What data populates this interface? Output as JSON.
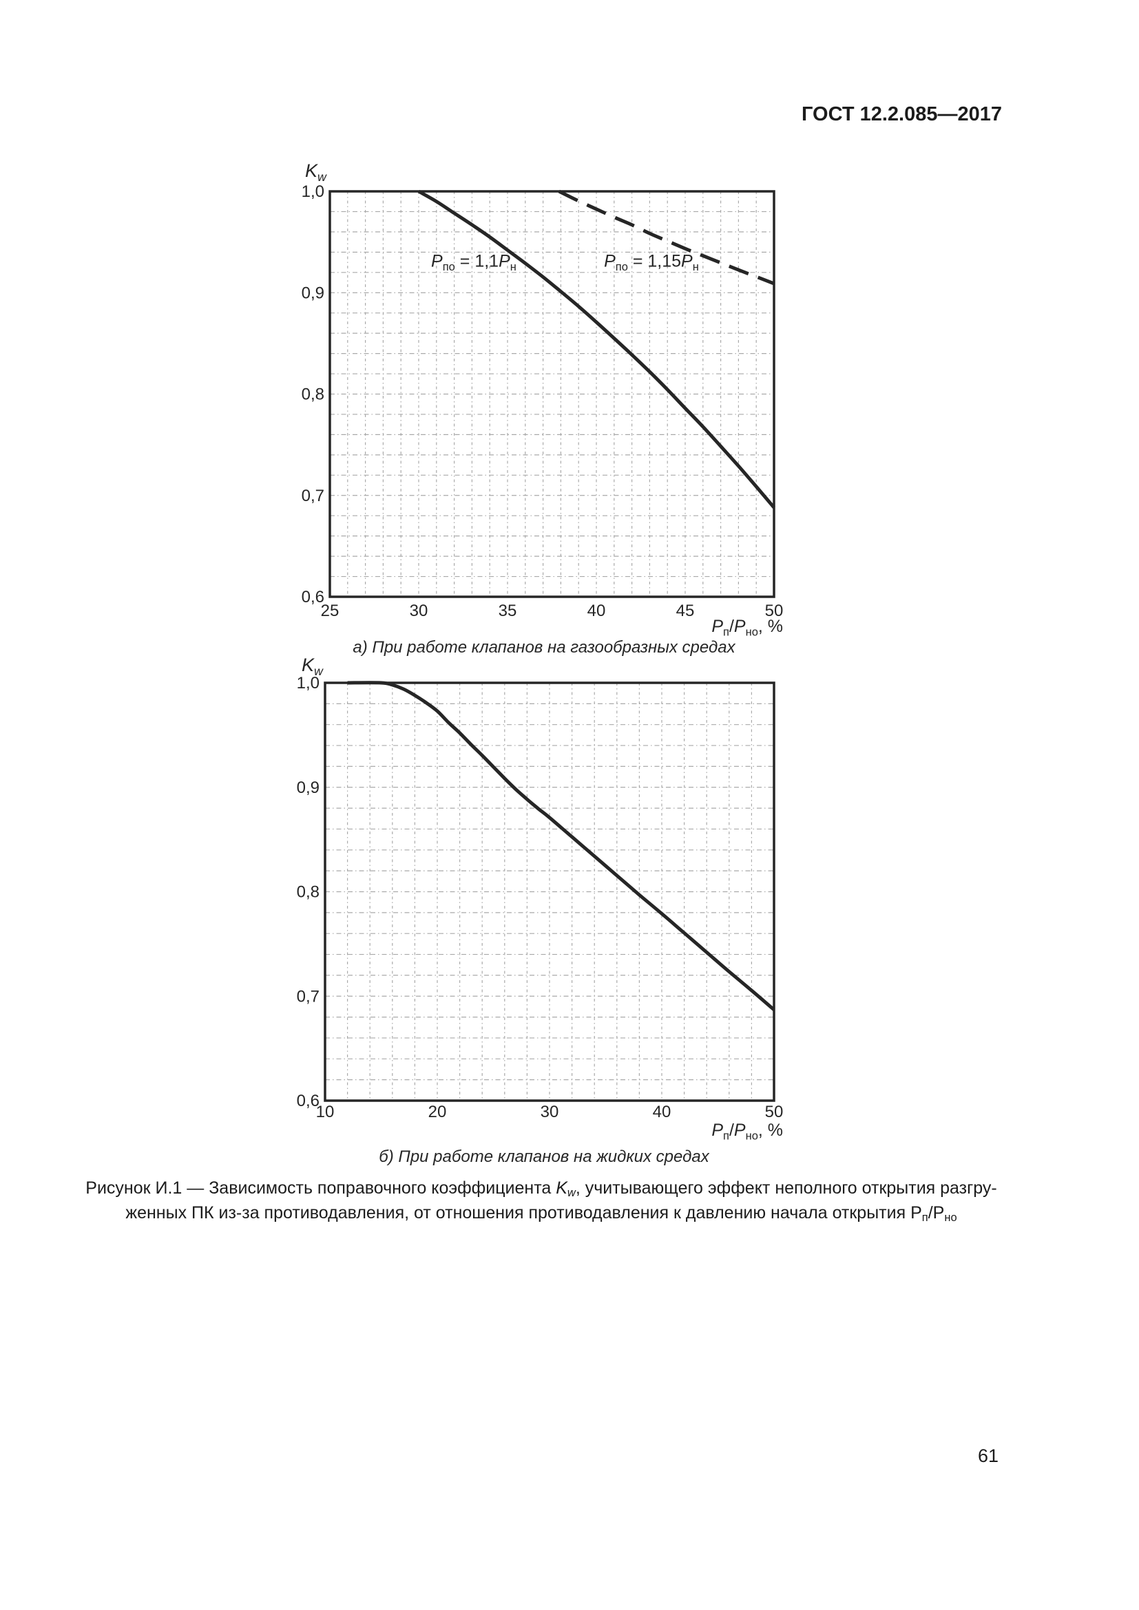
{
  "page": {
    "header": "ГОСТ 12.2.085—2017",
    "page_number": "61"
  },
  "figure_caption": {
    "line1": [
      {
        "t": "Рисунок И.1 — Зависимость поправочного коэффициента "
      },
      {
        "t": "K",
        "i": true
      },
      {
        "t": "w",
        "i": true,
        "sub": true
      },
      {
        "t": ", учитывающего эффект неполного открытия разгру-"
      }
    ],
    "line2": [
      {
        "t": "женных ПК из-за противодавления, от отношения противодавления к давлению начала открытия Р"
      },
      {
        "t": "п",
        "sub": true
      },
      {
        "t": "/Р"
      },
      {
        "t": "но",
        "sub": true
      }
    ]
  },
  "chart_data": [
    {
      "type": "line",
      "title": "а) При работе клапанов на газообразных средах",
      "ylabel": [
        {
          "t": "K",
          "i": true
        },
        {
          "t": "w",
          "i": true,
          "sub": true
        }
      ],
      "xlabel": [
        {
          "t": "P",
          "i": true
        },
        {
          "t": "п",
          "sub": true
        },
        {
          "t": "/"
        },
        {
          "t": "P",
          "i": true
        },
        {
          "t": "но",
          "sub": true
        },
        {
          "t": ", %"
        }
      ],
      "xlim": [
        25,
        50
      ],
      "ylim": [
        0.6,
        1.0
      ],
      "x_major": 5,
      "y_major": 0.1,
      "x_minor": 1,
      "y_minor": 0.02,
      "grid": true,
      "x_ticks": [
        {
          "v": 25,
          "label": "25"
        },
        {
          "v": 30,
          "label": "30"
        },
        {
          "v": 35,
          "label": "35"
        },
        {
          "v": 40,
          "label": "40"
        },
        {
          "v": 45,
          "label": "45"
        },
        {
          "v": 50,
          "label": "50"
        }
      ],
      "y_ticks": [
        {
          "v": 1.0,
          "label": "1,0"
        },
        {
          "v": 0.9,
          "label": "0,9"
        },
        {
          "v": 0.8,
          "label": "0,8"
        },
        {
          "v": 0.7,
          "label": "0,7"
        },
        {
          "v": 0.6,
          "label": "0,6"
        }
      ],
      "series": [
        {
          "name": "Pпо = 1,1Pн",
          "dashed": false,
          "label": [
            {
              "t": "P",
              "i": true
            },
            {
              "t": "по",
              "sub": true
            },
            {
              "t": " = 1,1"
            },
            {
              "t": "P",
              "i": true
            },
            {
              "t": "н",
              "sub": true
            }
          ],
          "label_pos": [
            33.1,
            0.931
          ],
          "points": [
            [
              30,
              1.0
            ],
            [
              31,
              0.99
            ],
            [
              32,
              0.9785
            ],
            [
              33,
              0.967
            ],
            [
              34,
              0.955
            ],
            [
              35,
              0.942
            ],
            [
              36,
              0.929
            ],
            [
              37,
              0.9155
            ],
            [
              38,
              0.9012
            ],
            [
              39,
              0.8865
            ],
            [
              40,
              0.871
            ],
            [
              41,
              0.855
            ],
            [
              42,
              0.8388
            ],
            [
              43,
              0.822
            ],
            [
              44,
              0.8044
            ],
            [
              45,
              0.786
            ],
            [
              46,
              0.7678
            ],
            [
              47,
              0.7485
            ],
            [
              48,
              0.729
            ],
            [
              49,
              0.7087
            ],
            [
              50,
              0.688
            ]
          ]
        },
        {
          "name": "Pпо = 1,15Pн",
          "dashed": true,
          "label": [
            {
              "t": "P",
              "i": true
            },
            {
              "t": "по",
              "sub": true
            },
            {
              "t": " = 1,15"
            },
            {
              "t": "P",
              "i": true
            },
            {
              "t": "н",
              "sub": true
            }
          ],
          "label_pos": [
            43.1,
            0.931
          ],
          "points": [
            [
              37.9,
              1.0
            ],
            [
              39,
              0.9905
            ],
            [
              40,
              0.9825
            ],
            [
              41,
              0.9745
            ],
            [
              42,
              0.967
            ],
            [
              43,
              0.9585
            ],
            [
              44,
              0.951
            ],
            [
              45,
              0.9435
            ],
            [
              46,
              0.9365
            ],
            [
              47,
              0.9295
            ],
            [
              48,
              0.9225
            ],
            [
              49,
              0.9158
            ],
            [
              50,
              0.909
            ]
          ]
        }
      ]
    },
    {
      "type": "line",
      "title": "б) При работе клапанов на жидких средах",
      "ylabel": [
        {
          "t": "K",
          "i": true
        },
        {
          "t": "w",
          "i": true,
          "sub": true
        }
      ],
      "xlabel": [
        {
          "t": "P",
          "i": true
        },
        {
          "t": "п",
          "sub": true
        },
        {
          "t": "/"
        },
        {
          "t": "P",
          "i": true
        },
        {
          "t": "но",
          "sub": true
        },
        {
          "t": ", %"
        }
      ],
      "xlim": [
        10,
        50
      ],
      "ylim": [
        0.6,
        1.0
      ],
      "x_major": 10,
      "y_major": 0.1,
      "x_minor": 2,
      "y_minor": 0.02,
      "grid": true,
      "x_ticks": [
        {
          "v": 10,
          "label": "10"
        },
        {
          "v": 20,
          "label": "20"
        },
        {
          "v": 30,
          "label": "30"
        },
        {
          "v": 40,
          "label": "40"
        },
        {
          "v": 50,
          "label": "50"
        }
      ],
      "y_ticks": [
        {
          "v": 1.0,
          "label": "1,0"
        },
        {
          "v": 0.9,
          "label": "0,9"
        },
        {
          "v": 0.8,
          "label": "0,8"
        },
        {
          "v": 0.7,
          "label": "0,7"
        },
        {
          "v": 0.6,
          "label": "0,6"
        }
      ],
      "series": [
        {
          "name": "Kw liquid",
          "dashed": false,
          "label": null,
          "label_pos": null,
          "points": [
            [
              12,
              1.0
            ],
            [
              15,
              1.0
            ],
            [
              16,
              0.998
            ],
            [
              17,
              0.994
            ],
            [
              18,
              0.988
            ],
            [
              19,
              0.981
            ],
            [
              20,
              0.973
            ],
            [
              21,
              0.962
            ],
            [
              22,
              0.952
            ],
            [
              23,
              0.941
            ],
            [
              24,
              0.9305
            ],
            [
              25,
              0.9195
            ],
            [
              26,
              0.9085
            ],
            [
              27,
              0.898
            ],
            [
              28,
              0.8885
            ],
            [
              29,
              0.8795
            ],
            [
              30,
              0.871
            ],
            [
              32,
              0.8525
            ],
            [
              34,
              0.834
            ],
            [
              36,
              0.8155
            ],
            [
              38,
              0.797
            ],
            [
              40,
              0.779
            ],
            [
              42,
              0.7605
            ],
            [
              44,
              0.742
            ],
            [
              46,
              0.7235
            ],
            [
              48,
              0.7055
            ],
            [
              50,
              0.687
            ]
          ]
        }
      ]
    }
  ]
}
